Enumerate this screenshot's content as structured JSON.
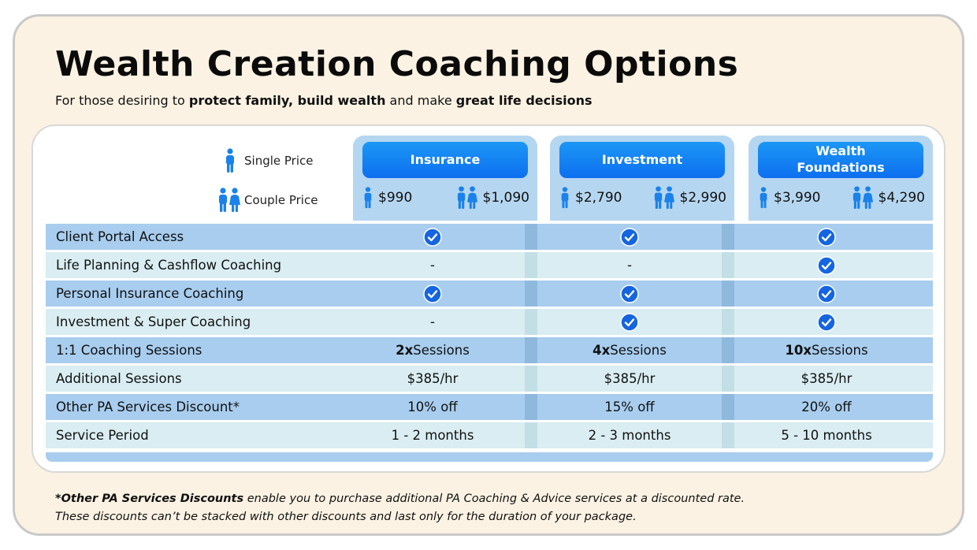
{
  "title": "Wealth Creation Coaching Options",
  "subtitle": {
    "part1": "For those desiring to ",
    "bold1": "protect family, build wealth",
    "part2": " and make ",
    "bold2": "great life decisions"
  },
  "legend": {
    "single": "Single Price",
    "couple": "Couple Price"
  },
  "plans": [
    {
      "name": "Insurance",
      "single_price": "$990",
      "couple_price": "$1,090"
    },
    {
      "name": "Investment",
      "single_price": "$2,790",
      "couple_price": "$2,990"
    },
    {
      "name": "Wealth Foundations",
      "single_price": "$3,990",
      "couple_price": "$4,290"
    }
  ],
  "rows": [
    {
      "label": "Client Portal Access"
    },
    {
      "label": "Life Planning & Cashflow Coaching"
    },
    {
      "label": "Personal Insurance Coaching"
    },
    {
      "label": "Investment & Super Coaching"
    },
    {
      "label": "1:1 Coaching Sessions",
      "values": [
        {
          "bold": "2x",
          "text": " Sessions"
        },
        {
          "bold": "4x",
          "text": " Sessions"
        },
        {
          "bold": "10x",
          "text": " Sessions"
        }
      ]
    },
    {
      "label": "Additional Sessions",
      "values": [
        "$385/hr",
        "$385/hr",
        "$385/hr"
      ]
    },
    {
      "label": "Other PA Services Discount*",
      "values": [
        "10% off",
        "15% off",
        "20% off"
      ]
    },
    {
      "label": "Service Period",
      "values": [
        "1 - 2 months",
        "2 - 3 months",
        "5 - 10 months"
      ]
    }
  ],
  "dash": "-",
  "footnote": {
    "bold": "*Other PA Services Discounts",
    "line1": " enable you to purchase additional PA Coaching & Advice services at a discounted rate.",
    "line2": "These discounts can’t be stacked with other discounts and last only for the duration of your package."
  },
  "colors": {
    "accent": "#0d6ff0",
    "check": "#1565e0",
    "row_dark": "#a8cdee",
    "row_light": "#d9edf2"
  },
  "icons": {
    "included": "check-circle-icon",
    "single": "person-icon",
    "couple": "couple-icon"
  }
}
